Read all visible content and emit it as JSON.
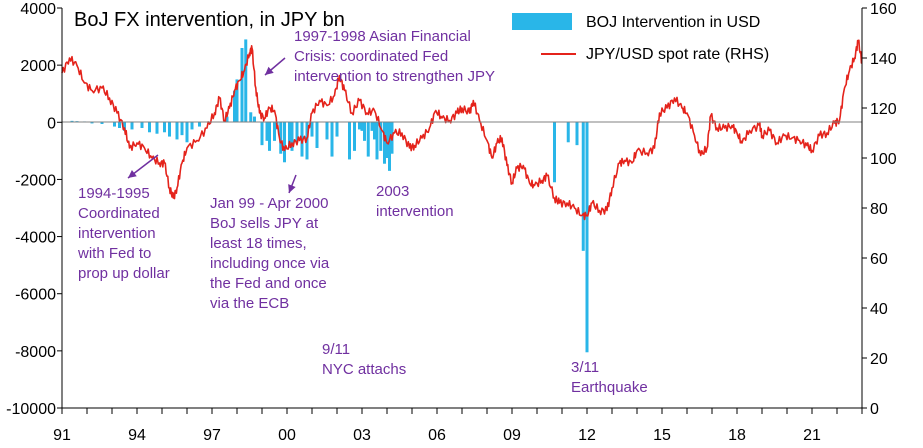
{
  "chart_data": {
    "type": "bar+line",
    "title": "BoJ FX intervention, in JPY bn",
    "x_tick_labels": [
      "91",
      "94",
      "97",
      "00",
      "03",
      "06",
      "09",
      "12",
      "15",
      "18",
      "21"
    ],
    "x_tick_years": [
      1991,
      1994,
      1997,
      2000,
      2003,
      2006,
      2009,
      2012,
      2015,
      2018,
      2021
    ],
    "x_range": [
      1991,
      2023
    ],
    "y_left": {
      "range": [
        -10000,
        4000
      ],
      "ticks": [
        "4000",
        "2000",
        "0",
        "-2000",
        "-4000",
        "-6000",
        "-8000",
        "-10000"
      ],
      "tick_values": [
        4000,
        2000,
        0,
        -2000,
        -4000,
        -6000,
        -8000,
        -10000
      ]
    },
    "y_right": {
      "range": [
        0,
        160
      ],
      "ticks": [
        "160",
        "140",
        "120",
        "100",
        "80",
        "60",
        "40",
        "20",
        "0"
      ],
      "tick_values": [
        160,
        140,
        120,
        100,
        80,
        60,
        40,
        20,
        0
      ]
    },
    "grid": false,
    "legend_position": "top-right",
    "series": [
      {
        "name": "BOJ Intervention in USD",
        "kind": "bar",
        "axis": "left",
        "color": "#29B6E8",
        "points": [
          [
            1991.4,
            50
          ],
          [
            1991.6,
            40
          ],
          [
            1991.9,
            30
          ],
          [
            1992.2,
            -40
          ],
          [
            1992.6,
            -60
          ],
          [
            1993.1,
            -150
          ],
          [
            1993.3,
            -200
          ],
          [
            1993.5,
            -300
          ],
          [
            1993.8,
            -250
          ],
          [
            1994.2,
            -200
          ],
          [
            1994.5,
            -350
          ],
          [
            1994.8,
            -400
          ],
          [
            1995.1,
            -350
          ],
          [
            1995.3,
            -500
          ],
          [
            1995.6,
            -600
          ],
          [
            1995.8,
            -450
          ],
          [
            1996.0,
            -700
          ],
          [
            1996.2,
            -250
          ],
          [
            1996.5,
            -150
          ],
          [
            1997.6,
            200
          ],
          [
            1997.9,
            1100
          ],
          [
            1998.0,
            1500
          ],
          [
            1998.2,
            2600
          ],
          [
            1998.35,
            2900
          ],
          [
            1998.55,
            350
          ],
          [
            1998.7,
            200
          ],
          [
            1999.0,
            -800
          ],
          [
            1999.2,
            -650
          ],
          [
            1999.3,
            -1000
          ],
          [
            1999.5,
            -650
          ],
          [
            1999.6,
            -250
          ],
          [
            1999.75,
            -1100
          ],
          [
            1999.9,
            -1400
          ],
          [
            2000.1,
            -900
          ],
          [
            2000.2,
            -1000
          ],
          [
            2000.4,
            -700
          ],
          [
            2000.6,
            -1200
          ],
          [
            2000.8,
            -1300
          ],
          [
            2001.0,
            -500
          ],
          [
            2001.2,
            -900
          ],
          [
            2001.6,
            -600
          ],
          [
            2001.8,
            -1200
          ],
          [
            2002.0,
            -500
          ],
          [
            2002.5,
            -1300
          ],
          [
            2002.7,
            -1000
          ],
          [
            2002.9,
            -250
          ],
          [
            2003.0,
            -300
          ],
          [
            2003.1,
            -650
          ],
          [
            2003.25,
            -1200
          ],
          [
            2003.4,
            -300
          ],
          [
            2003.5,
            -600
          ],
          [
            2003.6,
            -1300
          ],
          [
            2003.75,
            -1000
          ],
          [
            2003.9,
            -1450
          ],
          [
            2004.0,
            -1250
          ],
          [
            2004.1,
            -1700
          ],
          [
            2004.2,
            -1100
          ],
          [
            2010.7,
            -2100
          ],
          [
            2011.25,
            -700
          ],
          [
            2011.6,
            -800
          ],
          [
            2011.85,
            -4500
          ],
          [
            2012.0,
            -8050
          ]
        ]
      },
      {
        "name": "JPY/USD spot rate (RHS)",
        "kind": "line",
        "axis": "right",
        "color": "#E4231B",
        "points": [
          [
            1991.0,
            134
          ],
          [
            1991.3,
            140
          ],
          [
            1991.6,
            137
          ],
          [
            1991.9,
            130
          ],
          [
            1992.2,
            127
          ],
          [
            1992.6,
            128
          ],
          [
            1992.9,
            124
          ],
          [
            1993.2,
            118
          ],
          [
            1993.5,
            112
          ],
          [
            1993.7,
            104
          ],
          [
            1994.0,
            106
          ],
          [
            1994.3,
            104
          ],
          [
            1994.6,
            100
          ],
          [
            1994.9,
            98
          ],
          [
            1995.1,
            98
          ],
          [
            1995.3,
            88
          ],
          [
            1995.45,
            84
          ],
          [
            1995.6,
            88
          ],
          [
            1995.8,
            98
          ],
          [
            1996.0,
            104
          ],
          [
            1996.4,
            107
          ],
          [
            1996.8,
            112
          ],
          [
            1997.1,
            118
          ],
          [
            1997.3,
            124
          ],
          [
            1997.5,
            115
          ],
          [
            1997.7,
            120
          ],
          [
            1997.9,
            127
          ],
          [
            1998.1,
            131
          ],
          [
            1998.3,
            135
          ],
          [
            1998.5,
            142
          ],
          [
            1998.6,
            144
          ],
          [
            1998.75,
            128
          ],
          [
            1998.9,
            118
          ],
          [
            1999.1,
            116
          ],
          [
            1999.3,
            120
          ],
          [
            1999.5,
            119
          ],
          [
            1999.7,
            108
          ],
          [
            1999.9,
            103
          ],
          [
            2000.2,
            106
          ],
          [
            2000.5,
            107
          ],
          [
            2000.8,
            108
          ],
          [
            2001.0,
            118
          ],
          [
            2001.3,
            123
          ],
          [
            2001.6,
            121
          ],
          [
            2001.9,
            125
          ],
          [
            2002.1,
            133
          ],
          [
            2002.3,
            127
          ],
          [
            2002.6,
            118
          ],
          [
            2002.9,
            123
          ],
          [
            2003.2,
            118
          ],
          [
            2003.5,
            119
          ],
          [
            2003.8,
            111
          ],
          [
            2004.0,
            106
          ],
          [
            2004.3,
            110
          ],
          [
            2004.6,
            110
          ],
          [
            2004.9,
            104
          ],
          [
            2005.1,
            105
          ],
          [
            2005.4,
            108
          ],
          [
            2005.7,
            112
          ],
          [
            2005.95,
            119
          ],
          [
            2006.2,
            116
          ],
          [
            2006.5,
            115
          ],
          [
            2006.8,
            118
          ],
          [
            2007.0,
            120
          ],
          [
            2007.3,
            118
          ],
          [
            2007.45,
            123
          ],
          [
            2007.7,
            115
          ],
          [
            2008.0,
            107
          ],
          [
            2008.2,
            100
          ],
          [
            2008.4,
            106
          ],
          [
            2008.6,
            108
          ],
          [
            2008.8,
            97
          ],
          [
            2009.0,
            90
          ],
          [
            2009.2,
            96
          ],
          [
            2009.45,
            97
          ],
          [
            2009.7,
            90
          ],
          [
            2009.9,
            89
          ],
          [
            2010.2,
            91
          ],
          [
            2010.4,
            93
          ],
          [
            2010.7,
            84
          ],
          [
            2010.9,
            82
          ],
          [
            2011.2,
            82
          ],
          [
            2011.5,
            80
          ],
          [
            2011.8,
            77
          ],
          [
            2012.0,
            77
          ],
          [
            2012.2,
            82
          ],
          [
            2012.5,
            79
          ],
          [
            2012.8,
            79
          ],
          [
            2013.0,
            88
          ],
          [
            2013.3,
            98
          ],
          [
            2013.5,
            99
          ],
          [
            2013.8,
            98
          ],
          [
            2014.0,
            103
          ],
          [
            2014.4,
            102
          ],
          [
            2014.7,
            104
          ],
          [
            2014.9,
            118
          ],
          [
            2015.2,
            120
          ],
          [
            2015.5,
            124
          ],
          [
            2015.8,
            120
          ],
          [
            2016.0,
            118
          ],
          [
            2016.3,
            109
          ],
          [
            2016.55,
            101
          ],
          [
            2016.8,
            104
          ],
          [
            2016.95,
            117
          ],
          [
            2017.2,
            112
          ],
          [
            2017.5,
            112
          ],
          [
            2017.8,
            113
          ],
          [
            2018.0,
            110
          ],
          [
            2018.2,
            106
          ],
          [
            2018.5,
            111
          ],
          [
            2018.9,
            113
          ],
          [
            2019.0,
            109
          ],
          [
            2019.3,
            111
          ],
          [
            2019.6,
            106
          ],
          [
            2019.9,
            109
          ],
          [
            2020.2,
            108
          ],
          [
            2020.5,
            107
          ],
          [
            2020.8,
            105
          ],
          [
            2021.0,
            103
          ],
          [
            2021.3,
            109
          ],
          [
            2021.6,
            110
          ],
          [
            2021.9,
            114
          ],
          [
            2022.1,
            115
          ],
          [
            2022.3,
            128
          ],
          [
            2022.5,
            135
          ],
          [
            2022.7,
            140
          ],
          [
            2022.85,
            147
          ],
          [
            2023.0,
            138
          ]
        ]
      }
    ],
    "annotations": [
      {
        "lines": [
          "1997-1998 Asian Financial",
          "Crisis: coordinated Fed",
          "intervention to strengthen JPY"
        ],
        "arrow": true
      },
      {
        "lines": [
          "1994-1995",
          "Coordinated",
          "intervention",
          "with Fed to",
          "prop up dollar"
        ],
        "arrow": true
      },
      {
        "lines": [
          "Jan 99 - Apr 2000",
          "BoJ sells JPY at",
          "least 18 times,",
          "including once via",
          "the Fed and once",
          "via the ECB"
        ],
        "arrow": true
      },
      {
        "lines": [
          "2003",
          "intervention"
        ],
        "arrow": false
      },
      {
        "lines": [
          "9/11",
          "NYC attachs"
        ],
        "arrow": false
      },
      {
        "lines": [
          "3/11",
          "Earthquake"
        ],
        "arrow": false
      }
    ]
  }
}
